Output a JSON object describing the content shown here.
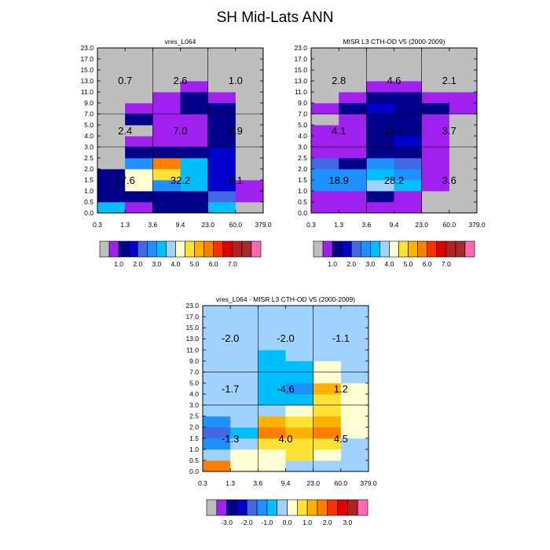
{
  "main_title": "SH Mid-Lats ANN",
  "palette": {
    "main": [
      "#bebebe",
      "#a020f0",
      "#00008b",
      "#0000cd",
      "#4169e1",
      "#1e90ff",
      "#00bfff",
      "#a0d2ff",
      "#ffffd1",
      "#ffe135",
      "#ffb000",
      "#ff7f00",
      "#ff3000",
      "#e10000",
      "#b22222",
      "#a52a2a",
      "#ff69b4"
    ],
    "diff": [
      "#bebebe",
      "#a020f0",
      "#00008b",
      "#0000cd",
      "#4169e1",
      "#1e90ff",
      "#00bfff",
      "#a0d2ff",
      "#ffffd1",
      "#ffe135",
      "#ffb000",
      "#ff7f00",
      "#ff3000",
      "#e10000",
      "#b22222",
      "#ff69b4"
    ]
  },
  "colorbars": {
    "main": {
      "labels": [
        "1.0",
        "2.0",
        "3.0",
        "4.0",
        "5.0",
        "6.0",
        "7.0"
      ]
    },
    "diff": {
      "labels": [
        "-3.0",
        "-2.0",
        "-1.0",
        "0.0",
        "1.0",
        "2.0",
        "3.0"
      ]
    }
  },
  "chart_data": [
    {
      "type": "heatmap",
      "title": "vres_L064",
      "x_tick_labels": [
        "0.3",
        "1.3",
        "3.6",
        "9.4",
        "23.0",
        "60.0",
        "379.0"
      ],
      "y_tick_labels": [
        "0.0",
        "0.5",
        "1.0",
        "1.5",
        "2.0",
        "2.5",
        "3.0",
        "4.0",
        "5.0",
        "7.0",
        "9.0",
        "11.0",
        "13.0",
        "15.0",
        "17.0",
        "23.0"
      ],
      "colorbar": "main",
      "cells": [
        [
          6,
          1,
          2,
          2,
          6,
          0
        ],
        [
          2,
          2,
          2,
          2,
          4,
          1
        ],
        [
          2,
          8,
          5,
          6,
          3,
          1
        ],
        [
          2,
          8,
          9,
          6,
          3,
          0
        ],
        [
          0,
          5,
          11,
          6,
          3,
          0
        ],
        [
          0,
          2,
          2,
          2,
          3,
          0
        ],
        [
          0,
          1,
          1,
          1,
          2,
          0
        ],
        [
          0,
          0,
          1,
          1,
          2,
          0
        ],
        [
          0,
          2,
          1,
          1,
          2,
          0
        ],
        [
          0,
          1,
          1,
          2,
          2,
          0
        ],
        [
          0,
          0,
          1,
          2,
          1,
          0
        ],
        [
          0,
          0,
          0,
          1,
          0,
          0
        ],
        [
          0,
          0,
          0,
          0,
          0,
          0
        ],
        [
          0,
          0,
          0,
          0,
          0,
          0
        ],
        [
          0,
          0,
          0,
          0,
          0,
          0
        ]
      ],
      "region_values": [
        [
          "0.7",
          "2.6",
          "1.0"
        ],
        [
          "2.4",
          "7.0",
          "4.9"
        ],
        [
          "17.6",
          "32.2",
          "8.1"
        ]
      ]
    },
    {
      "type": "heatmap",
      "title": "MISR L3 CTH-OD V5 (2000-2009)",
      "x_tick_labels": [
        "0.3",
        "1.3",
        "3.6",
        "9.4",
        "23.0",
        "60.0",
        "379.0"
      ],
      "y_tick_labels": [
        "0.0",
        "0.5",
        "1.0",
        "1.5",
        "2.0",
        "2.5",
        "3.0",
        "4.0",
        "5.0",
        "7.0",
        "9.0",
        "11.0",
        "13.0",
        "15.0",
        "17.0",
        "23.0"
      ],
      "colorbar": "main",
      "cells": [
        [
          1,
          1,
          1,
          1,
          0,
          0
        ],
        [
          1,
          1,
          2,
          1,
          0,
          0
        ],
        [
          5,
          5,
          7,
          6,
          1,
          0
        ],
        [
          5,
          5,
          6,
          5,
          1,
          0
        ],
        [
          4,
          2,
          5,
          4,
          1,
          0
        ],
        [
          1,
          1,
          2,
          2,
          1,
          0
        ],
        [
          1,
          1,
          2,
          3,
          1,
          0
        ],
        [
          1,
          1,
          2,
          2,
          1,
          0
        ],
        [
          0,
          1,
          2,
          2,
          1,
          0
        ],
        [
          1,
          2,
          3,
          2,
          2,
          1
        ],
        [
          0,
          1,
          2,
          2,
          1,
          1
        ],
        [
          0,
          0,
          1,
          1,
          0,
          0
        ],
        [
          0,
          0,
          0,
          0,
          0,
          0
        ],
        [
          0,
          0,
          0,
          0,
          0,
          0
        ],
        [
          0,
          0,
          0,
          0,
          0,
          0
        ]
      ],
      "region_values": [
        [
          "2.8",
          "4.6",
          "2.1"
        ],
        [
          "4.1",
          "11.7",
          "3.7"
        ],
        [
          "18.9",
          "28.2",
          "3.6"
        ]
      ]
    },
    {
      "type": "heatmap",
      "title": "vres_L064 - MISR L3 CTH-OD V5 (2000-2009)",
      "x_tick_labels": [
        "0.3",
        "1.3",
        "3.6",
        "9.4",
        "23.0",
        "60.0",
        "379.0"
      ],
      "y_tick_labels": [
        "0.0",
        "0.5",
        "1.0",
        "1.5",
        "2.0",
        "2.5",
        "3.0",
        "4.0",
        "5.0",
        "7.0",
        "9.0",
        "11.0",
        "13.0",
        "15.0",
        "17.0",
        "23.0"
      ],
      "colorbar": "diff",
      "cells": [
        [
          11,
          8,
          8,
          7,
          7,
          7
        ],
        [
          7,
          8,
          8,
          9,
          8,
          7
        ],
        [
          5,
          7,
          9,
          9,
          9,
          7
        ],
        [
          4,
          6,
          11,
          10,
          11,
          8
        ],
        [
          5,
          7,
          10,
          9,
          10,
          8
        ],
        [
          7,
          7,
          7,
          8,
          9,
          8
        ],
        [
          7,
          7,
          6,
          6,
          9,
          8
        ],
        [
          7,
          7,
          6,
          5,
          10,
          8
        ],
        [
          7,
          7,
          6,
          6,
          8,
          7
        ],
        [
          7,
          7,
          6,
          6,
          8,
          7
        ],
        [
          7,
          7,
          6,
          7,
          7,
          7
        ],
        [
          7,
          7,
          7,
          7,
          7,
          7
        ],
        [
          7,
          7,
          7,
          7,
          7,
          7
        ],
        [
          7,
          7,
          7,
          7,
          7,
          7
        ],
        [
          7,
          7,
          7,
          7,
          7,
          7
        ]
      ],
      "region_values": [
        [
          "-2.0",
          "-2.0",
          "-1.1"
        ],
        [
          "-1.7",
          "-4.6",
          "1.2"
        ],
        [
          "-1.3",
          "4.0",
          "4.5"
        ]
      ]
    }
  ]
}
